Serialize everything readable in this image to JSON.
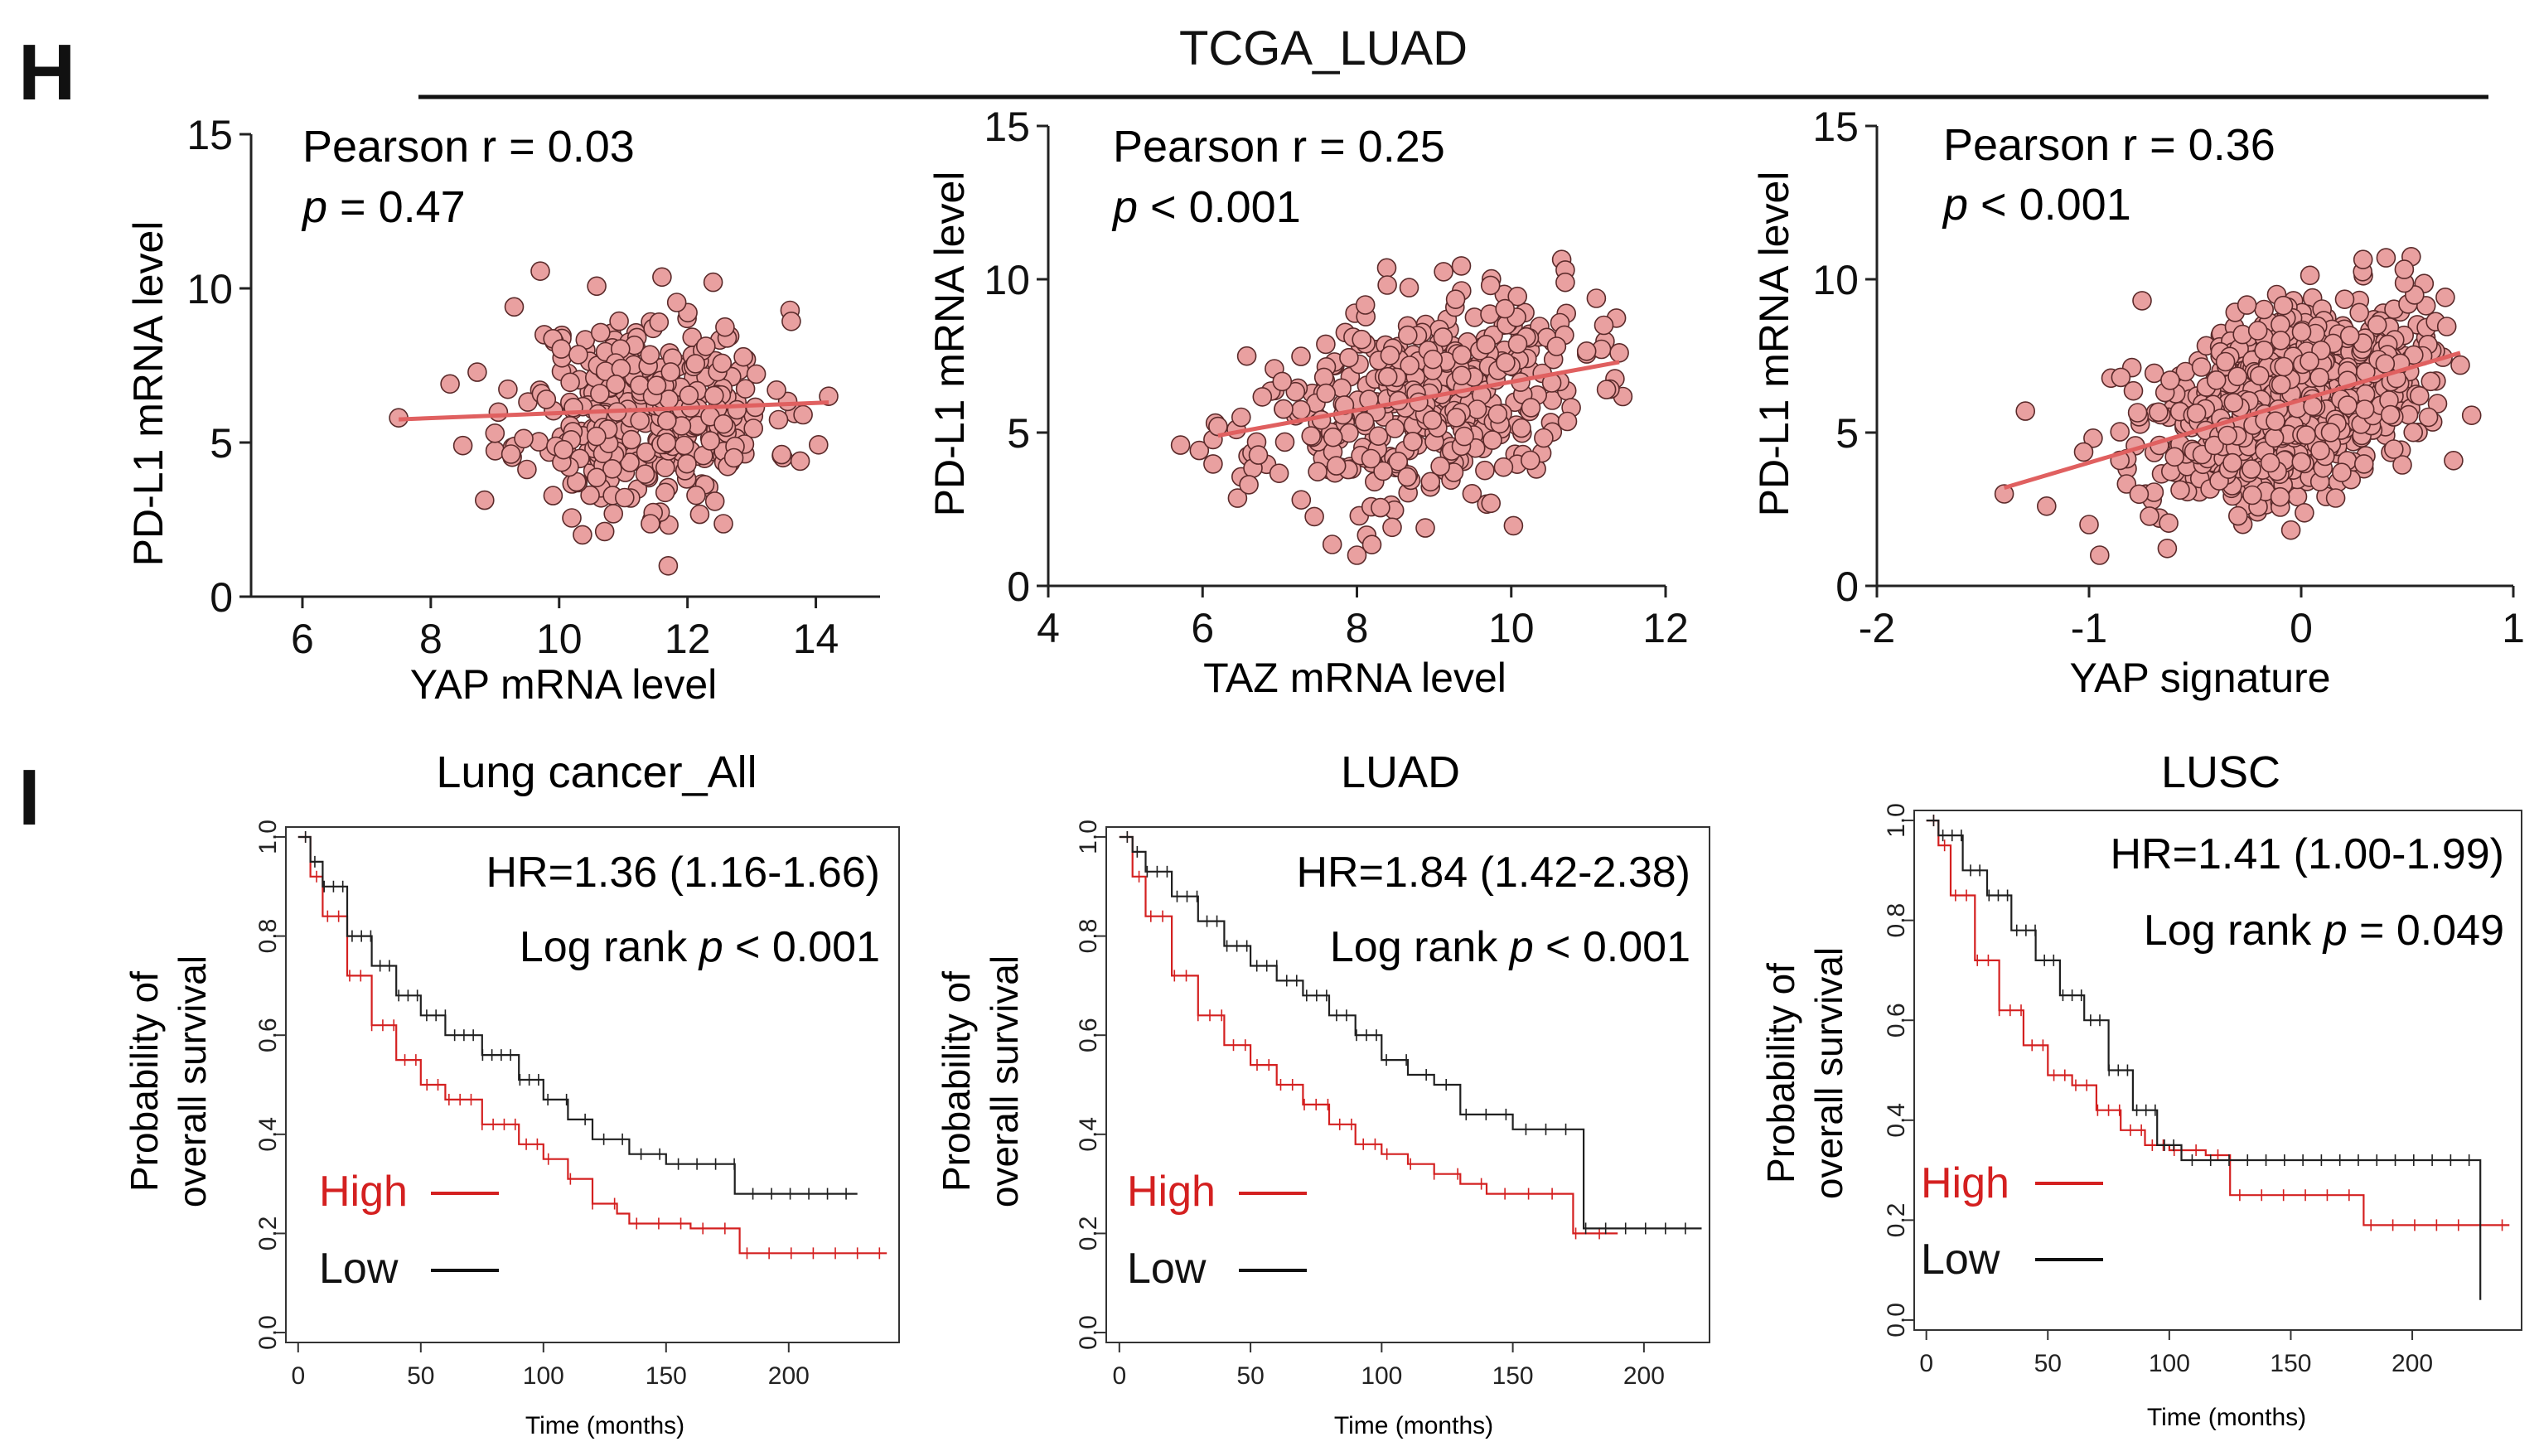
{
  "panel_h": {
    "letter": "H",
    "dataset": "TCGA_LUAD"
  },
  "panel_i": {
    "letter": "I"
  },
  "chart_data": [
    {
      "id": "scatter-yap",
      "type": "scatter",
      "xlabel": "YAP mRNA level",
      "ylabel": "PD-L1 mRNA level",
      "xlim": [
        5.2,
        15
      ],
      "ylim": [
        0,
        15
      ],
      "xticks": [
        6,
        8,
        10,
        12,
        14
      ],
      "yticks": [
        0,
        5,
        10,
        15
      ],
      "stat_line1": "Pearson r = 0.03",
      "stat_p_symbol": "p",
      "stat_p_rest": " = 0.47",
      "fit": {
        "x0": 7.5,
        "y0": 5.75,
        "x1": 14.2,
        "y1": 6.3
      },
      "cloud": {
        "n": 380,
        "mean_x": 11.4,
        "sd_x": 0.95,
        "mean_y": 6.0,
        "sd_y": 1.6,
        "corr": 0.03,
        "seed": 11
      },
      "extra_points": [
        [
          7.5,
          5.8
        ],
        [
          8.3,
          6.9
        ],
        [
          8.5,
          4.9
        ],
        [
          9.0,
          5.3
        ],
        [
          9.3,
          9.4
        ],
        [
          9.8,
          6.4
        ],
        [
          14.2,
          6.5
        ],
        [
          13.8,
          5.9
        ],
        [
          11.7,
          1.0
        ],
        [
          12.4,
          10.2
        ]
      ],
      "marker_color": "#e9a0a0",
      "line_color": "#e06060"
    },
    {
      "id": "scatter-taz",
      "type": "scatter",
      "xlabel": "TAZ mRNA level",
      "ylabel": "PD-L1 mRNA level",
      "xlim": [
        4,
        12
      ],
      "ylim": [
        0,
        15
      ],
      "xticks": [
        4,
        6,
        8,
        10,
        12
      ],
      "yticks": [
        0,
        5,
        10,
        15
      ],
      "stat_line1": "Pearson r = 0.25",
      "stat_p_symbol": "p",
      "stat_p_rest": " < 0.001",
      "fit": {
        "x0": 6.2,
        "y0": 4.9,
        "x1": 11.4,
        "y1": 7.3
      },
      "cloud": {
        "n": 420,
        "mean_x": 8.8,
        "sd_x": 1.05,
        "mean_y": 6.0,
        "sd_y": 1.7,
        "corr": 0.25,
        "seed": 23
      },
      "extra_points": [
        [
          6.2,
          5.2
        ],
        [
          6.5,
          5.5
        ],
        [
          6.6,
          3.3
        ],
        [
          10.7,
          10.3
        ],
        [
          10.7,
          9.9
        ],
        [
          11.2,
          8.5
        ],
        [
          8.0,
          1.0
        ],
        [
          11.4,
          7.6
        ]
      ],
      "marker_color": "#e9a0a0",
      "line_color": "#e06060"
    },
    {
      "id": "scatter-yap-signature",
      "type": "scatter",
      "xlabel": "YAP signature",
      "ylabel": "PD-L1 mRNA level",
      "xlim": [
        -2,
        1
      ],
      "ylim": [
        0,
        15
      ],
      "xticks": [
        -2,
        -1,
        0,
        1
      ],
      "yticks": [
        0,
        5,
        10,
        15
      ],
      "stat_line1": "Pearson r = 0.36",
      "stat_p_symbol": "p",
      "stat_p_rest": " < 0.001",
      "fit": {
        "x0": -1.4,
        "y0": 3.2,
        "x1": 0.75,
        "y1": 7.6
      },
      "cloud": {
        "n": 900,
        "mean_x": -0.05,
        "sd_x": 0.3,
        "mean_y": 6.0,
        "sd_y": 1.6,
        "corr": 0.36,
        "seed": 37
      },
      "extra_points": [
        [
          -1.4,
          3.0
        ],
        [
          -1.3,
          5.7
        ],
        [
          -1.2,
          2.6
        ],
        [
          -1.0,
          2.0
        ],
        [
          -0.95,
          1.0
        ],
        [
          -0.75,
          9.3
        ],
        [
          -0.85,
          6.8
        ],
        [
          0.75,
          7.2
        ],
        [
          0.6,
          5.5
        ],
        [
          0.4,
          10.7
        ]
      ],
      "marker_color": "#e9a0a0",
      "line_color": "#e06060"
    },
    {
      "id": "km-lung-all",
      "type": "line",
      "title": "Lung cancer_All",
      "xlabel": "Time (months)",
      "ylabel_line1": "Probability of",
      "ylabel_line2": "overall survival",
      "xlim": [
        -5,
        245
      ],
      "ylim": [
        -0.02,
        1.02
      ],
      "xticks": [
        0,
        50,
        100,
        150,
        200
      ],
      "yticks": [
        "0.0",
        "0.2",
        "0.4",
        "0.6",
        "0.8",
        "1.0"
      ],
      "hr_text": "HR=1.36 (1.16-1.66)",
      "logrank_prefix": "Log rank ",
      "logrank_p": "p",
      "logrank_value": "  < 0.001",
      "legend_high": "High",
      "legend_low": "Low",
      "series": [
        {
          "name": "High",
          "color": "#d42020",
          "end": 240,
          "points": [
            [
              0,
              1.0
            ],
            [
              5,
              0.92
            ],
            [
              10,
              0.84
            ],
            [
              20,
              0.72
            ],
            [
              30,
              0.62
            ],
            [
              40,
              0.55
            ],
            [
              50,
              0.5
            ],
            [
              60,
              0.47
            ],
            [
              75,
              0.42
            ],
            [
              90,
              0.38
            ],
            [
              100,
              0.35
            ],
            [
              110,
              0.31
            ],
            [
              120,
              0.26
            ],
            [
              130,
              0.24
            ],
            [
              135,
              0.22
            ],
            [
              150,
              0.22
            ],
            [
              160,
              0.21
            ],
            [
              180,
              0.21
            ],
            [
              180,
              0.16
            ],
            [
              240,
              0.16
            ]
          ]
        },
        {
          "name": "Low",
          "color": "#202020",
          "end": 228,
          "drop": 0.0,
          "points": [
            [
              0,
              1.0
            ],
            [
              5,
              0.95
            ],
            [
              10,
              0.9
            ],
            [
              20,
              0.8
            ],
            [
              30,
              0.74
            ],
            [
              40,
              0.68
            ],
            [
              50,
              0.64
            ],
            [
              60,
              0.6
            ],
            [
              75,
              0.56
            ],
            [
              90,
              0.51
            ],
            [
              100,
              0.47
            ],
            [
              110,
              0.43
            ],
            [
              120,
              0.39
            ],
            [
              135,
              0.36
            ],
            [
              150,
              0.34
            ],
            [
              170,
              0.34
            ],
            [
              178,
              0.34
            ],
            [
              178,
              0.28
            ],
            [
              228,
              0.28
            ]
          ]
        }
      ]
    },
    {
      "id": "km-luad",
      "type": "line",
      "title": "LUAD",
      "xlabel": "Time (months)",
      "ylabel_line1": "Probability of",
      "ylabel_line2": "overall survival",
      "xlim": [
        -5,
        225
      ],
      "ylim": [
        -0.02,
        1.02
      ],
      "xticks": [
        0,
        50,
        100,
        150,
        200
      ],
      "yticks": [
        "0.0",
        "0.2",
        "0.4",
        "0.6",
        "0.8",
        "1.0"
      ],
      "hr_text": "HR=1.84 (1.42-2.38)",
      "logrank_prefix": "Log rank ",
      "logrank_p": "p",
      "logrank_value": "  < 0.001",
      "legend_high": "High",
      "legend_low": "Low",
      "series": [
        {
          "name": "High",
          "color": "#d42020",
          "end": 190,
          "points": [
            [
              0,
              1.0
            ],
            [
              5,
              0.92
            ],
            [
              10,
              0.84
            ],
            [
              20,
              0.72
            ],
            [
              30,
              0.64
            ],
            [
              40,
              0.58
            ],
            [
              50,
              0.54
            ],
            [
              60,
              0.5
            ],
            [
              70,
              0.46
            ],
            [
              80,
              0.42
            ],
            [
              90,
              0.38
            ],
            [
              100,
              0.36
            ],
            [
              110,
              0.34
            ],
            [
              120,
              0.32
            ],
            [
              130,
              0.3
            ],
            [
              140,
              0.28
            ],
            [
              170,
              0.28
            ],
            [
              173,
              0.2
            ],
            [
              190,
              0.2
            ]
          ]
        },
        {
          "name": "Low",
          "color": "#202020",
          "end": 222,
          "points": [
            [
              0,
              1.0
            ],
            [
              5,
              0.97
            ],
            [
              10,
              0.93
            ],
            [
              20,
              0.88
            ],
            [
              30,
              0.83
            ],
            [
              40,
              0.78
            ],
            [
              50,
              0.74
            ],
            [
              60,
              0.71
            ],
            [
              70,
              0.68
            ],
            [
              80,
              0.64
            ],
            [
              90,
              0.6
            ],
            [
              100,
              0.55
            ],
            [
              110,
              0.52
            ],
            [
              120,
              0.5
            ],
            [
              130,
              0.44
            ],
            [
              150,
              0.41
            ],
            [
              175,
              0.41
            ],
            [
              177,
              0.21
            ],
            [
              222,
              0.21
            ]
          ]
        }
      ]
    },
    {
      "id": "km-lusc",
      "type": "line",
      "title": "LUSC",
      "xlabel": "Time (months)",
      "ylabel_line1": "Probability of",
      "ylabel_line2": "overall survival",
      "xlim": [
        -5,
        245
      ],
      "ylim": [
        -0.02,
        1.02
      ],
      "xticks": [
        0,
        50,
        100,
        150,
        200
      ],
      "yticks": [
        "0.0",
        "0.2",
        "0.4",
        "0.6",
        "0.8",
        "1.0"
      ],
      "hr_text": "HR=1.41 (1.00-1.99)",
      "logrank_prefix": "Log rank ",
      "logrank_p": "p",
      "logrank_value": " = 0.049",
      "legend_high": "High",
      "legend_low": "Low",
      "series": [
        {
          "name": "High",
          "color": "#d42020",
          "end": 240,
          "points": [
            [
              0,
              1.0
            ],
            [
              5,
              0.95
            ],
            [
              10,
              0.85
            ],
            [
              20,
              0.72
            ],
            [
              30,
              0.62
            ],
            [
              40,
              0.55
            ],
            [
              50,
              0.49
            ],
            [
              60,
              0.47
            ],
            [
              70,
              0.42
            ],
            [
              80,
              0.38
            ],
            [
              90,
              0.35
            ],
            [
              100,
              0.34
            ],
            [
              115,
              0.33
            ],
            [
              125,
              0.25
            ],
            [
              150,
              0.25
            ],
            [
              180,
              0.25
            ],
            [
              180,
              0.19
            ],
            [
              240,
              0.19
            ]
          ]
        },
        {
          "name": "Low",
          "color": "#202020",
          "end": 228,
          "points": [
            [
              0,
              1.0
            ],
            [
              5,
              0.97
            ],
            [
              15,
              0.9
            ],
            [
              25,
              0.85
            ],
            [
              35,
              0.78
            ],
            [
              45,
              0.72
            ],
            [
              55,
              0.65
            ],
            [
              65,
              0.6
            ],
            [
              75,
              0.5
            ],
            [
              85,
              0.42
            ],
            [
              95,
              0.35
            ],
            [
              105,
              0.32
            ],
            [
              150,
              0.32
            ],
            [
              200,
              0.32
            ],
            [
              228,
              0.32
            ],
            [
              228,
              0.04
            ]
          ]
        }
      ]
    }
  ]
}
